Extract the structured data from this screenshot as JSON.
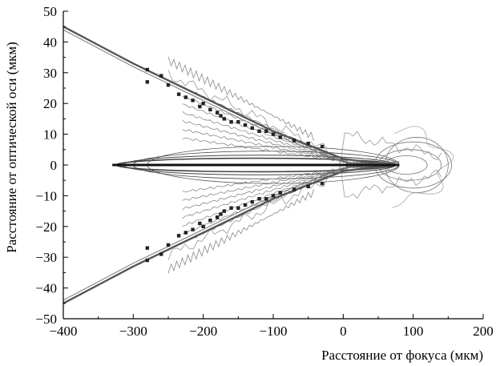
{
  "chart_data": {
    "type": "scatter",
    "title": "",
    "xlabel": "Расстояние от фокуса (мкм)",
    "ylabel": "Расстояние от оптической оси (мкм)",
    "xlim": [
      -400,
      200
    ],
    "ylim": [
      -50,
      50
    ],
    "xticks": [
      -400,
      -300,
      -200,
      -100,
      0,
      100,
      200
    ],
    "xtick_labels": [
      "−400",
      "−300",
      "−200",
      "−100",
      "0",
      "100",
      "200"
    ],
    "yticks": [
      -50,
      -40,
      -30,
      -20,
      -10,
      0,
      10,
      20,
      30,
      40,
      50
    ],
    "ytick_labels": [
      "−50",
      "−40",
      "−30",
      "−20",
      "−10",
      "0",
      "10",
      "20",
      "30",
      "40",
      "50"
    ],
    "grid": false,
    "legend": "none",
    "series": [
      {
        "style": "points",
        "x": [
          -280,
          -280,
          -260,
          -250,
          -235,
          -225,
          -215,
          -205,
          -200,
          -190,
          -180,
          -175,
          -170,
          -160,
          -150,
          -140,
          -130,
          -120,
          -110,
          -100,
          -90,
          -70,
          -50,
          -30,
          -280,
          -280,
          -260,
          -250,
          -235,
          -225,
          -215,
          -205,
          -200,
          -190,
          -180,
          -175,
          -170,
          -160,
          -150,
          -140,
          -130,
          -120,
          -110,
          -100,
          -90,
          -70,
          -50,
          -30
        ],
        "y": [
          31,
          27,
          29,
          26,
          23,
          22,
          21,
          19,
          20,
          18,
          17,
          16,
          15,
          14,
          14,
          13,
          12,
          11,
          11,
          10,
          9,
          8,
          7,
          6,
          -31,
          -27,
          -29,
          -26,
          -23,
          -22,
          -21,
          -19,
          -20,
          -18,
          -17,
          -16,
          -15,
          -14,
          -14,
          -13,
          -12,
          -11,
          -11,
          -10,
          -9,
          -8,
          -7,
          -6
        ]
      },
      {
        "style": "line",
        "x": [
          -400,
          -300,
          -200,
          -100,
          0,
          50,
          80
        ],
        "y": [
          45,
          33,
          22,
          11,
          2,
          0.5,
          0
        ]
      },
      {
        "style": "line",
        "x": [
          -400,
          -300,
          -200,
          -100,
          0,
          50,
          80
        ],
        "y": [
          -45,
          -33,
          -22,
          -11,
          -2,
          -0.5,
          0
        ]
      },
      {
        "style": "contour",
        "levels": 6,
        "note": ""
      }
    ]
  }
}
